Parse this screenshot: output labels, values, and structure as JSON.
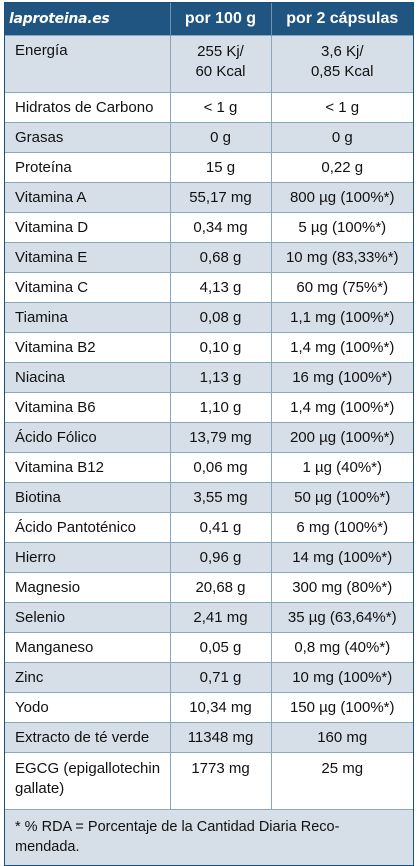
{
  "header": {
    "logo": "laproteina.es",
    "col_per100": "por 100 g",
    "col_per2": "por 2 cápsulas"
  },
  "rows": [
    {
      "name": "Energía",
      "per100": [
        "255 Kj/",
        "60 Kcal"
      ],
      "per2": [
        "3,6 Kj/",
        "0,85 Kcal"
      ]
    },
    {
      "name": "Hidratos de Carbono",
      "per100": [
        "< 1 g"
      ],
      "per2": [
        "< 1 g"
      ]
    },
    {
      "name": "Grasas",
      "per100": [
        "0 g"
      ],
      "per2": [
        "0 g"
      ]
    },
    {
      "name": "Proteína",
      "per100": [
        "15 g"
      ],
      "per2": [
        "0,22 g"
      ]
    },
    {
      "name": "Vitamina A",
      "per100": [
        "55,17 mg"
      ],
      "per2": [
        "800 µg (100%*)"
      ]
    },
    {
      "name": "Vitamina D",
      "per100": [
        "0,34 mg"
      ],
      "per2": [
        "5 µg (100%*)"
      ]
    },
    {
      "name": "Vitamina E",
      "per100": [
        "0,68 g"
      ],
      "per2": [
        "10 mg (83,33%*)"
      ]
    },
    {
      "name": "Vitamina C",
      "per100": [
        "4,13 g"
      ],
      "per2": [
        "60 mg (75%*)"
      ]
    },
    {
      "name": "Tiamina",
      "per100": [
        "0,08 g"
      ],
      "per2": [
        "1,1 mg (100%*)"
      ]
    },
    {
      "name": "Vitamina B2",
      "per100": [
        "0,10 g"
      ],
      "per2": [
        "1,4 mg (100%*)"
      ]
    },
    {
      "name": "Niacina",
      "per100": [
        "1,13 g"
      ],
      "per2": [
        "16 mg (100%*)"
      ]
    },
    {
      "name": "Vitamina B6",
      "per100": [
        "1,10 g"
      ],
      "per2": [
        "1,4 mg (100%*)"
      ]
    },
    {
      "name": "Ácido Fólico",
      "per100": [
        "13,79 mg"
      ],
      "per2": [
        "200 µg (100%*)"
      ]
    },
    {
      "name": "Vitamina B12",
      "per100": [
        "0,06 mg"
      ],
      "per2": [
        "1 µg (40%*)"
      ]
    },
    {
      "name": "Biotina",
      "per100": [
        "3,55 mg"
      ],
      "per2": [
        "50 µg (100%*)"
      ]
    },
    {
      "name": "Ácido Pantoténico",
      "per100": [
        "0,41 g"
      ],
      "per2": [
        "6 mg (100%*)"
      ]
    },
    {
      "name": "Hierro",
      "per100": [
        "0,96 g"
      ],
      "per2": [
        "14 mg (100%*)"
      ]
    },
    {
      "name": "Magnesio",
      "per100": [
        "20,68 g"
      ],
      "per2": [
        "300 mg (80%*)"
      ]
    },
    {
      "name": "Selenio",
      "per100": [
        "2,41 mg"
      ],
      "per2": [
        "35 µg (63,64%*)"
      ]
    },
    {
      "name": "Manganeso",
      "per100": [
        "0,05 g"
      ],
      "per2": [
        "0,8 mg (40%*)"
      ]
    },
    {
      "name": "Zinc",
      "per100": [
        "0,71 g"
      ],
      "per2": [
        "10 mg (100%*)"
      ]
    },
    {
      "name": "Yodo",
      "per100": [
        "10,34 mg"
      ],
      "per2": [
        "150 µg (100%*)"
      ]
    },
    {
      "name": "Extracto de té verde",
      "per100": [
        "11348 mg"
      ],
      "per2": [
        "160 mg"
      ]
    },
    {
      "name": [
        "EGCG (epigallotechin",
        "gallate)"
      ],
      "per100": [
        "1773 mg"
      ],
      "per2": [
        "25 mg"
      ]
    }
  ],
  "footnote": [
    "* % RDA = Porcentaje de la Cantidad Diaria Reco-",
    "mendada."
  ],
  "colors": {
    "header_bg": "#1f5580",
    "row_shade": "#d6dfe8",
    "row_white": "#ffffff",
    "logo_accent": "#e8342a"
  }
}
